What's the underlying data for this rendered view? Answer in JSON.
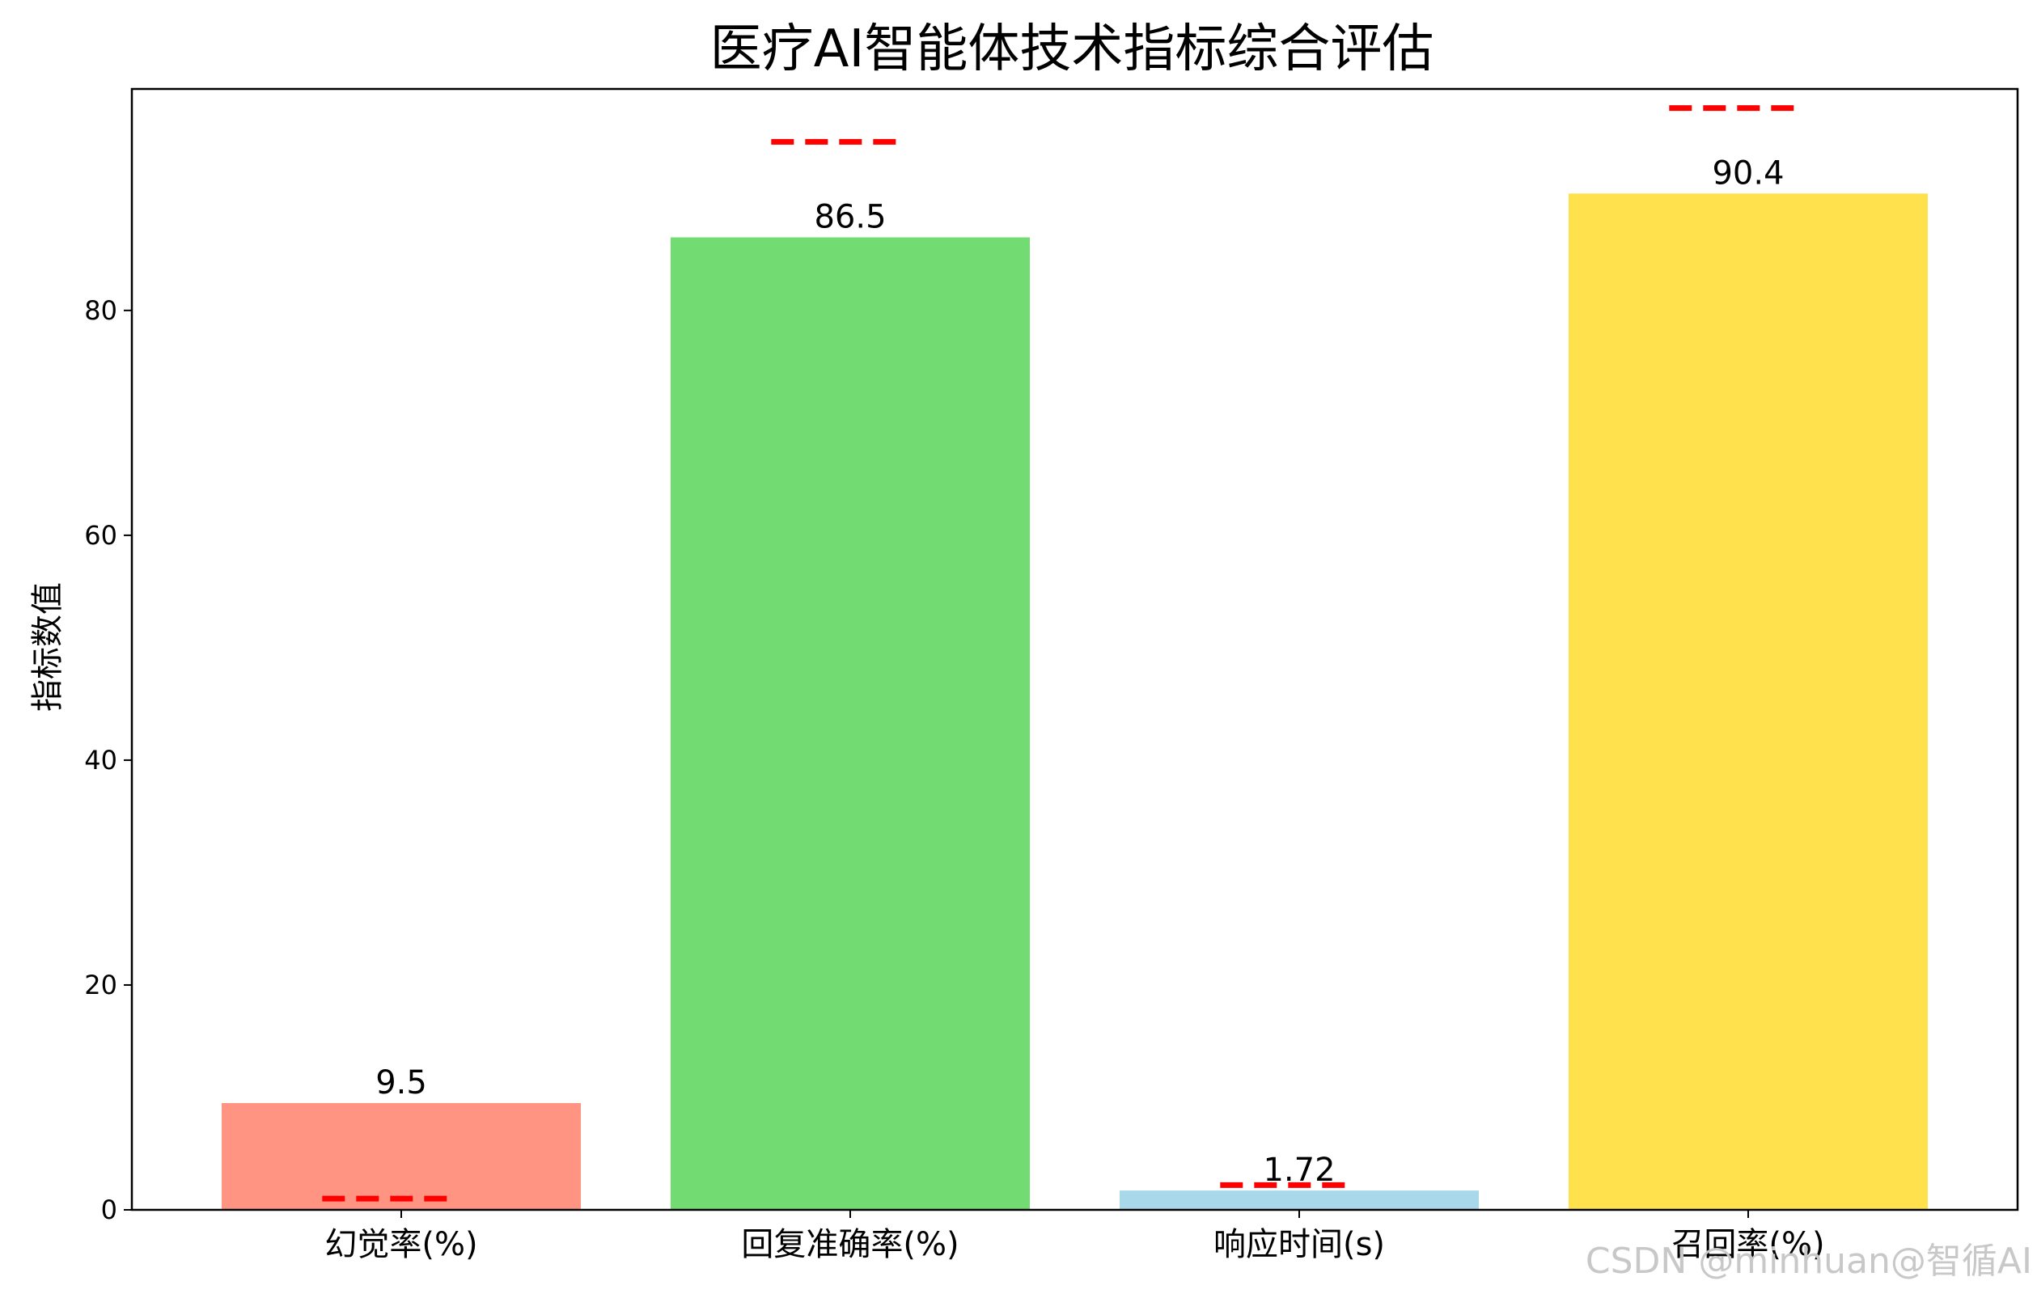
{
  "chart_data": {
    "type": "bar",
    "title": "医疗AI智能体技术指标综合评估",
    "xlabel": "",
    "ylabel": "指标数值",
    "categories": [
      "幻觉率(%)",
      "回复准确率(%)",
      "响应时间(s)",
      "召回率(%)"
    ],
    "values": [
      9.5,
      86.5,
      1.72,
      90.4
    ],
    "value_labels": [
      "9.5",
      "86.5",
      "1.72",
      "90.4"
    ],
    "targets": [
      1.0,
      95.0,
      2.2,
      98.0
    ],
    "bar_colors": [
      "#ff9482",
      "#72dc72",
      "#a8d8ea",
      "#ffe14e"
    ],
    "target_color": "#ff0000",
    "ylim": [
      0,
      99.7
    ],
    "yticks": [
      0,
      20,
      40,
      60,
      80
    ],
    "grid": false,
    "legend": "none"
  },
  "watermark": "CSDN @minhuan@智循AI"
}
